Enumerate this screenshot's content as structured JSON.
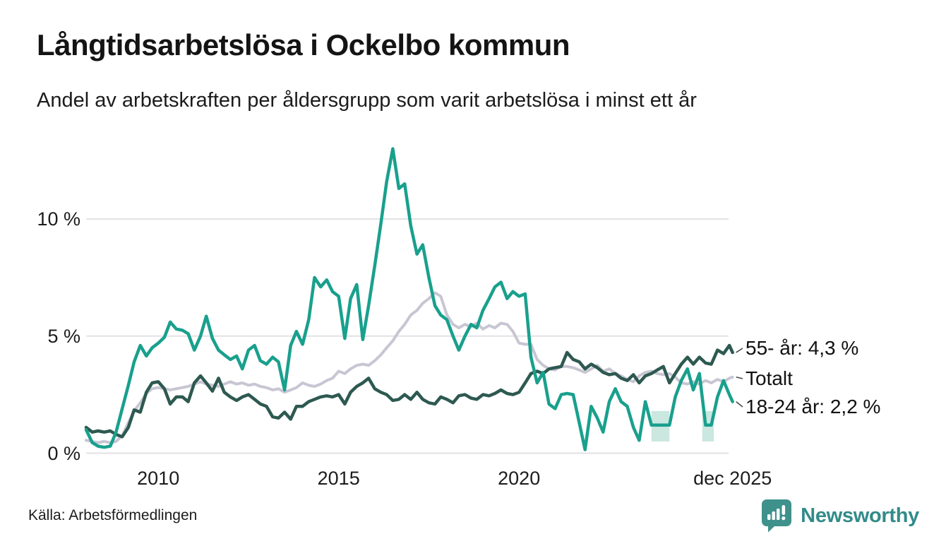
{
  "header": {
    "title": "Långtidsarbetslösa i Ockelbo kommun",
    "subtitle": "Andel av arbetskraften per åldersgrupp som varit arbetslösa i minst ett år"
  },
  "footer": {
    "source": "Källa: Arbetsförmedlingen",
    "brand": "Newsworthy"
  },
  "colors": {
    "series_55": "#2d5950",
    "series_total": "#c8c6d3",
    "series_18_24": "#19a08d",
    "uncertainty_band": "#a7d7cb",
    "gridline": "#e2e2e6",
    "brand_icon": "#3f918c",
    "brand_text": "#328b89"
  },
  "chart_data": {
    "type": "line",
    "title": "Långtidsarbetslösa i Ockelbo kommun",
    "subtitle": "Andel av arbetskraften per åldersgrupp som varit arbetslösa i minst ett år",
    "xlabel": "",
    "ylabel": "",
    "xlim": [
      2008,
      2026.1
    ],
    "ylim": [
      0,
      13.4
    ],
    "grid": "horizontal",
    "legend_position": "right-end-labels",
    "y_ticks": [
      {
        "value": 0,
        "label": "0 %"
      },
      {
        "value": 5,
        "label": "5 %"
      },
      {
        "value": 10,
        "label": "10 %"
      }
    ],
    "x_ticks": [
      {
        "value": 2010,
        "label": "2010"
      },
      {
        "value": 2015,
        "label": "2015"
      },
      {
        "value": 2020,
        "label": "2020"
      },
      {
        "value": 2025.92,
        "label": "dec 2025"
      }
    ],
    "x": [
      2008,
      2008.17,
      2008.33,
      2008.5,
      2008.67,
      2008.83,
      2009,
      2009.17,
      2009.33,
      2009.5,
      2009.67,
      2009.83,
      2010,
      2010.17,
      2010.33,
      2010.5,
      2010.67,
      2010.83,
      2011,
      2011.17,
      2011.33,
      2011.5,
      2011.67,
      2011.83,
      2012,
      2012.17,
      2012.33,
      2012.5,
      2012.67,
      2012.83,
      2013,
      2013.17,
      2013.33,
      2013.5,
      2013.67,
      2013.83,
      2014,
      2014.17,
      2014.33,
      2014.5,
      2014.67,
      2014.83,
      2015,
      2015.17,
      2015.33,
      2015.5,
      2015.67,
      2015.83,
      2016,
      2016.17,
      2016.33,
      2016.5,
      2016.67,
      2016.83,
      2017,
      2017.17,
      2017.33,
      2017.5,
      2017.67,
      2017.83,
      2018,
      2018.17,
      2018.33,
      2018.5,
      2018.67,
      2018.83,
      2019,
      2019.17,
      2019.33,
      2019.5,
      2019.67,
      2019.83,
      2020,
      2020.17,
      2020.33,
      2020.5,
      2020.67,
      2020.83,
      2021,
      2021.17,
      2021.33,
      2021.5,
      2021.67,
      2021.83,
      2022,
      2022.17,
      2022.33,
      2022.5,
      2022.67,
      2022.83,
      2023,
      2023.17,
      2023.33,
      2023.5,
      2023.67,
      2023.83,
      2024,
      2024.17,
      2024.33,
      2024.5,
      2024.67,
      2024.83,
      2025,
      2025.17,
      2025.33,
      2025.5,
      2025.67,
      2025.83,
      2025.92
    ],
    "series": [
      {
        "name": "55- år",
        "end_label": "55- år: 4,3 %",
        "end_value": "4,3 %",
        "color": "#2d5950",
        "values": [
          1.1,
          0.9,
          0.95,
          0.9,
          0.95,
          0.8,
          0.7,
          1.1,
          1.85,
          1.75,
          2.6,
          3.0,
          3.05,
          2.75,
          2.1,
          2.4,
          2.4,
          2.2,
          3.0,
          3.3,
          3.0,
          2.65,
          3.2,
          2.6,
          2.4,
          2.25,
          2.4,
          2.5,
          2.3,
          2.1,
          2.0,
          1.55,
          1.5,
          1.75,
          1.45,
          2.0,
          2.0,
          2.2,
          2.3,
          2.4,
          2.45,
          2.4,
          2.5,
          2.1,
          2.6,
          2.85,
          3.0,
          3.2,
          2.75,
          2.6,
          2.5,
          2.25,
          2.3,
          2.5,
          2.3,
          2.6,
          2.3,
          2.15,
          2.1,
          2.4,
          2.3,
          2.15,
          2.45,
          2.5,
          2.35,
          2.3,
          2.5,
          2.45,
          2.55,
          2.7,
          2.55,
          2.5,
          2.6,
          3.0,
          3.4,
          3.5,
          3.4,
          3.6,
          3.65,
          3.7,
          4.3,
          4.0,
          3.9,
          3.6,
          3.8,
          3.65,
          3.45,
          3.35,
          3.4,
          3.2,
          3.1,
          3.35,
          3.0,
          3.3,
          3.4,
          3.55,
          3.7,
          3.0,
          3.4,
          3.8,
          4.1,
          3.8,
          4.1,
          3.85,
          3.8,
          4.4,
          4.25,
          4.6,
          4.3
        ]
      },
      {
        "name": "Totalt",
        "end_label": "Totalt",
        "end_value": "",
        "color": "#c8c6d3",
        "values": [
          0.55,
          0.5,
          0.45,
          0.5,
          0.45,
          0.5,
          0.75,
          1.3,
          1.8,
          2.15,
          2.55,
          2.75,
          2.8,
          2.75,
          2.7,
          2.75,
          2.8,
          2.85,
          2.95,
          3.05,
          2.95,
          2.9,
          2.85,
          2.95,
          3.05,
          2.95,
          3.0,
          2.9,
          2.95,
          2.85,
          2.8,
          2.7,
          2.75,
          2.6,
          2.7,
          2.8,
          3.0,
          2.9,
          2.85,
          2.95,
          3.1,
          3.2,
          3.5,
          3.4,
          3.6,
          3.75,
          3.8,
          3.75,
          3.95,
          4.2,
          4.5,
          4.8,
          5.2,
          5.5,
          5.9,
          6.1,
          6.4,
          6.6,
          6.85,
          6.7,
          5.9,
          5.5,
          5.35,
          5.5,
          5.4,
          5.55,
          5.3,
          5.45,
          5.35,
          5.55,
          5.5,
          5.2,
          4.7,
          4.65,
          4.65,
          4.0,
          3.75,
          3.6,
          3.55,
          3.7,
          3.7,
          3.65,
          3.55,
          3.45,
          3.6,
          3.75,
          3.5,
          3.6,
          3.4,
          3.3,
          3.15,
          3.05,
          3.3,
          3.45,
          3.5,
          3.4,
          3.35,
          3.4,
          3.25,
          3.0,
          2.95,
          3.05,
          2.95,
          3.1,
          3.0,
          3.15,
          3.05,
          3.2,
          3.25
        ]
      },
      {
        "name": "18-24 år",
        "end_label": "18-24 år: 2,2 %",
        "end_value": "2,2 %",
        "color": "#19a08d",
        "values": [
          1.0,
          0.45,
          0.3,
          0.25,
          0.3,
          0.9,
          1.9,
          2.9,
          3.9,
          4.6,
          4.15,
          4.5,
          4.7,
          4.95,
          5.6,
          5.3,
          5.25,
          5.1,
          4.4,
          5.0,
          5.85,
          4.9,
          4.4,
          4.2,
          4.0,
          4.15,
          3.6,
          4.4,
          4.6,
          3.95,
          3.8,
          4.1,
          3.9,
          2.7,
          4.6,
          5.2,
          4.65,
          5.7,
          7.5,
          7.1,
          7.4,
          6.9,
          6.7,
          4.9,
          6.6,
          7.2,
          4.85,
          6.3,
          8.0,
          9.8,
          11.6,
          13.0,
          11.3,
          11.5,
          9.7,
          8.5,
          8.9,
          7.5,
          6.3,
          5.9,
          5.7,
          5.0,
          4.4,
          5.0,
          5.5,
          5.35,
          6.1,
          6.6,
          7.1,
          7.3,
          6.6,
          6.9,
          6.7,
          6.8,
          4.1,
          3.0,
          3.45,
          2.1,
          1.9,
          2.5,
          2.55,
          2.5,
          1.3,
          0.15,
          2.0,
          1.5,
          0.9,
          2.2,
          2.75,
          2.2,
          2.0,
          1.1,
          0.55,
          2.2,
          1.2,
          1.2,
          1.2,
          1.2,
          2.4,
          3.1,
          3.6,
          2.7,
          3.4,
          1.2,
          1.2,
          2.4,
          3.1,
          2.5,
          2.2
        ]
      }
    ],
    "uncertainty_bands": [
      {
        "series": "18-24 år",
        "x_start": 2023.67,
        "x_end": 2024.17,
        "y_low": 0.5,
        "y_high": 1.8
      },
      {
        "series": "18-24 år",
        "x_start": 2025.08,
        "x_end": 2025.4,
        "y_low": 0.5,
        "y_high": 1.8
      }
    ]
  }
}
